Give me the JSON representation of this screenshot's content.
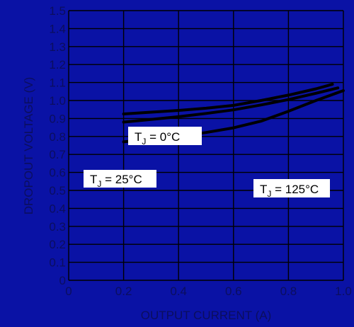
{
  "chart_data": {
    "type": "line",
    "xlabel": "OUTPUT CURRENT (A)",
    "ylabel": "DROPOUT VOLTAGE (V)",
    "xlim": [
      0,
      1.0
    ],
    "ylim": [
      0,
      1.5
    ],
    "x_ticks": [
      "0",
      "0.2",
      "0.4",
      "0.6",
      "0.8",
      "1.0"
    ],
    "y_ticks": [
      "0",
      "0.1",
      "0.2",
      "0.3",
      "0.4",
      "0.5",
      "0.6",
      "0.7",
      "0.8",
      "0.9",
      "1.0",
      "1.1",
      "1.2",
      "1.3",
      "1.4",
      "1.5"
    ],
    "grid": true,
    "colors": {
      "background": "#0a12a5",
      "grid": "#000000",
      "series": "#000000",
      "label_box": "#ffffff",
      "tick_text": "#0b0e5e"
    },
    "series": [
      {
        "name": "TJ = 0°C",
        "label": {
          "main": "T",
          "sub": "J",
          "rest": " = 0°C"
        },
        "x": [
          0.2,
          0.3,
          0.4,
          0.5,
          0.6,
          0.7,
          0.8,
          0.9,
          0.96
        ],
        "y": [
          0.925,
          0.935,
          0.945,
          0.957,
          0.973,
          1.0,
          1.03,
          1.065,
          1.09
        ]
      },
      {
        "name": "TJ = 25°C",
        "label": {
          "main": "T",
          "sub": "J",
          "rest": " = 25°C"
        },
        "x": [
          0.2,
          0.3,
          0.4,
          0.5,
          0.6,
          0.7,
          0.8,
          0.9,
          0.98
        ],
        "y": [
          0.88,
          0.895,
          0.91,
          0.928,
          0.948,
          0.975,
          1.005,
          1.04,
          1.07
        ]
      },
      {
        "name": "TJ = 125°C",
        "label": {
          "main": "T",
          "sub": "J",
          "rest": " = 125°C"
        },
        "x": [
          0.2,
          0.3,
          0.4,
          0.5,
          0.6,
          0.7,
          0.8,
          0.9,
          1.0
        ],
        "y": [
          0.77,
          0.785,
          0.8,
          0.822,
          0.848,
          0.885,
          0.94,
          1.0,
          1.055
        ]
      }
    ]
  }
}
